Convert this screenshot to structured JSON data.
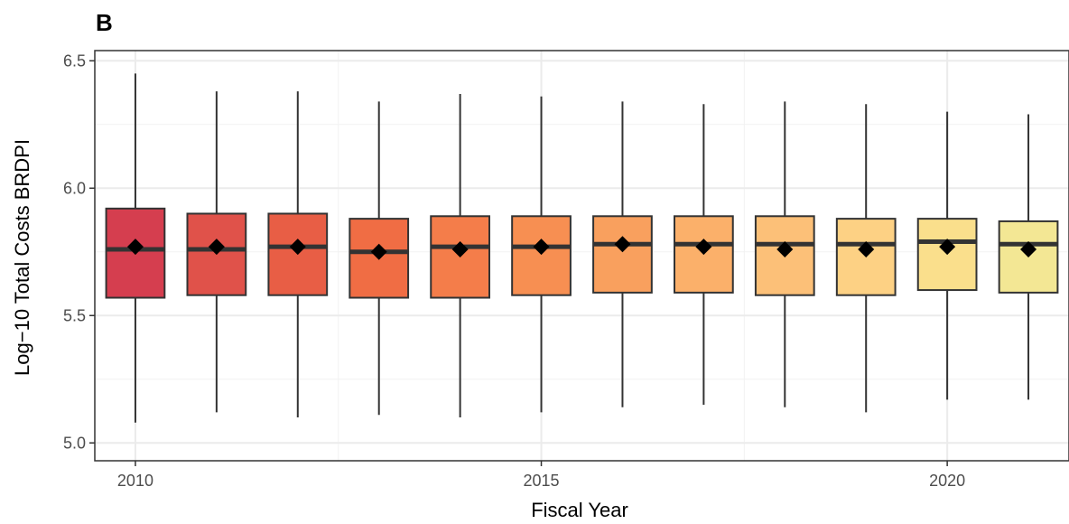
{
  "chart_data": {
    "type": "boxplot",
    "panel_tag": "B",
    "xlabel": "Fiscal Year",
    "ylabel": "Log−10 Total Costs BRDPI",
    "xlim": [
      2009.5,
      2021.5
    ],
    "ylim": [
      4.93,
      6.54
    ],
    "x_ticks": [
      2010,
      2015,
      2020
    ],
    "x_tick_labels": [
      "2010",
      "2015",
      "2020"
    ],
    "y_ticks": [
      5.0,
      5.5,
      6.0,
      6.5
    ],
    "y_tick_labels": [
      "5.0",
      "5.5",
      "6.0",
      "6.5"
    ],
    "grid": true,
    "mean_marker": "diamond",
    "series": [
      {
        "x": 2010,
        "min": 5.08,
        "q1": 5.57,
        "median": 5.76,
        "q3": 5.92,
        "max": 6.45,
        "mean": 5.77,
        "color": "#d53e4f"
      },
      {
        "x": 2011,
        "min": 5.12,
        "q1": 5.58,
        "median": 5.76,
        "q3": 5.9,
        "max": 6.38,
        "mean": 5.77,
        "color": "#e0524a"
      },
      {
        "x": 2012,
        "min": 5.1,
        "q1": 5.58,
        "median": 5.77,
        "q3": 5.9,
        "max": 6.38,
        "mean": 5.77,
        "color": "#e85e45"
      },
      {
        "x": 2013,
        "min": 5.11,
        "q1": 5.57,
        "median": 5.75,
        "q3": 5.88,
        "max": 6.34,
        "mean": 5.75,
        "color": "#f06d44"
      },
      {
        "x": 2014,
        "min": 5.1,
        "q1": 5.57,
        "median": 5.77,
        "q3": 5.89,
        "max": 6.37,
        "mean": 5.76,
        "color": "#f47d4a"
      },
      {
        "x": 2015,
        "min": 5.12,
        "q1": 5.58,
        "median": 5.77,
        "q3": 5.89,
        "max": 6.36,
        "mean": 5.77,
        "color": "#f78f52"
      },
      {
        "x": 2016,
        "min": 5.14,
        "q1": 5.59,
        "median": 5.78,
        "q3": 5.89,
        "max": 6.34,
        "mean": 5.78,
        "color": "#f9a05e"
      },
      {
        "x": 2017,
        "min": 5.15,
        "q1": 5.59,
        "median": 5.78,
        "q3": 5.89,
        "max": 6.33,
        "mean": 5.77,
        "color": "#fbb06a"
      },
      {
        "x": 2018,
        "min": 5.14,
        "q1": 5.58,
        "median": 5.78,
        "q3": 5.89,
        "max": 6.34,
        "mean": 5.76,
        "color": "#fcc078"
      },
      {
        "x": 2019,
        "min": 5.12,
        "q1": 5.58,
        "median": 5.78,
        "q3": 5.88,
        "max": 6.33,
        "mean": 5.76,
        "color": "#fdd184"
      },
      {
        "x": 2020,
        "min": 5.17,
        "q1": 5.6,
        "median": 5.79,
        "q3": 5.88,
        "max": 6.3,
        "mean": 5.77,
        "color": "#fadf8c"
      },
      {
        "x": 2021,
        "min": 5.17,
        "q1": 5.59,
        "median": 5.78,
        "q3": 5.87,
        "max": 6.29,
        "mean": 5.76,
        "color": "#f3e794"
      }
    ]
  }
}
